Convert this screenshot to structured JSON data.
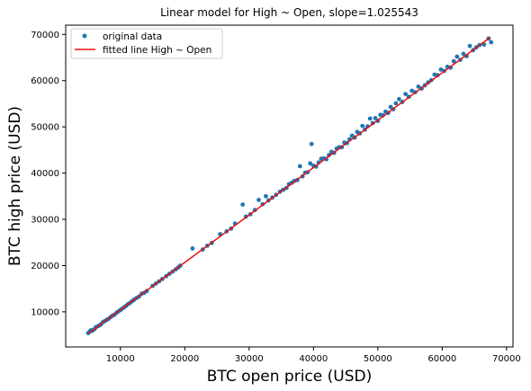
{
  "chart_data": {
    "type": "scatter",
    "title": "Linear model for High ~ Open, slope=1.025543",
    "xlabel": "BTC open price (USD)",
    "ylabel": "BTC high price (USD)",
    "xlim": [
      1500,
      71000
    ],
    "ylim": [
      2400,
      72000
    ],
    "xticks": [
      10000,
      20000,
      30000,
      40000,
      50000,
      60000,
      70000
    ],
    "yticks": [
      10000,
      20000,
      30000,
      40000,
      50000,
      60000,
      70000
    ],
    "grid": false,
    "legend": {
      "placement": "top-left",
      "entries": [
        "original data",
        "fitted line High ~ Open"
      ]
    },
    "series": [
      {
        "name": "original data",
        "kind": "points",
        "color": "#1f77b4",
        "points": [
          [
            5000,
            5400
          ],
          [
            5200,
            5700
          ],
          [
            5400,
            6000
          ],
          [
            5600,
            5900
          ],
          [
            5800,
            6100
          ],
          [
            6000,
            6300
          ],
          [
            6200,
            6700
          ],
          [
            6500,
            6900
          ],
          [
            6800,
            7100
          ],
          [
            7000,
            7300
          ],
          [
            7300,
            7800
          ],
          [
            7600,
            8000
          ],
          [
            7900,
            8300
          ],
          [
            8200,
            8500
          ],
          [
            8500,
            8900
          ],
          [
            8800,
            9200
          ],
          [
            9100,
            9400
          ],
          [
            9400,
            9800
          ],
          [
            9700,
            10100
          ],
          [
            10000,
            10400
          ],
          [
            10300,
            10700
          ],
          [
            10600,
            11000
          ],
          [
            10900,
            11300
          ],
          [
            11200,
            11700
          ],
          [
            11500,
            11900
          ],
          [
            11800,
            12300
          ],
          [
            12100,
            12600
          ],
          [
            12500,
            13000
          ],
          [
            12900,
            13300
          ],
          [
            13300,
            13900
          ],
          [
            13700,
            14100
          ],
          [
            14100,
            14500
          ],
          [
            15000,
            15600
          ],
          [
            15500,
            16100
          ],
          [
            16000,
            16600
          ],
          [
            16500,
            17100
          ],
          [
            17100,
            17700
          ],
          [
            17600,
            18200
          ],
          [
            18100,
            18700
          ],
          [
            18600,
            19200
          ],
          [
            19000,
            19600
          ],
          [
            19300,
            20000
          ],
          [
            21200,
            23700
          ],
          [
            22800,
            23500
          ],
          [
            23500,
            24300
          ],
          [
            24200,
            24900
          ],
          [
            25500,
            26800
          ],
          [
            26500,
            27400
          ],
          [
            27200,
            28000
          ],
          [
            27800,
            29100
          ],
          [
            29000,
            33200
          ],
          [
            29500,
            30600
          ],
          [
            30200,
            31100
          ],
          [
            30900,
            32000
          ],
          [
            31500,
            34200
          ],
          [
            32100,
            33300
          ],
          [
            32600,
            35000
          ],
          [
            33000,
            34100
          ],
          [
            33600,
            34700
          ],
          [
            34200,
            35300
          ],
          [
            34800,
            36000
          ],
          [
            35300,
            36400
          ],
          [
            35800,
            36800
          ],
          [
            36200,
            37600
          ],
          [
            36600,
            37900
          ],
          [
            37000,
            38300
          ],
          [
            37500,
            38500
          ],
          [
            37900,
            41500
          ],
          [
            38300,
            39300
          ],
          [
            38700,
            40100
          ],
          [
            39100,
            40200
          ],
          [
            39500,
            42100
          ],
          [
            39700,
            46300
          ],
          [
            40000,
            41600
          ],
          [
            40400,
            41400
          ],
          [
            40800,
            42300
          ],
          [
            41200,
            43100
          ],
          [
            41600,
            43200
          ],
          [
            42000,
            43000
          ],
          [
            42400,
            43900
          ],
          [
            42800,
            44600
          ],
          [
            43200,
            44400
          ],
          [
            43600,
            45300
          ],
          [
            44000,
            45600
          ],
          [
            44400,
            45600
          ],
          [
            44800,
            46600
          ],
          [
            45200,
            46500
          ],
          [
            45600,
            47300
          ],
          [
            46000,
            48100
          ],
          [
            46400,
            47700
          ],
          [
            46800,
            48900
          ],
          [
            47200,
            48600
          ],
          [
            47600,
            50200
          ],
          [
            48000,
            49400
          ],
          [
            48400,
            50100
          ],
          [
            48800,
            51800
          ],
          [
            49200,
            50800
          ],
          [
            49600,
            51900
          ],
          [
            50000,
            51300
          ],
          [
            50400,
            52600
          ],
          [
            50800,
            52500
          ],
          [
            51200,
            53300
          ],
          [
            51600,
            53000
          ],
          [
            52000,
            54300
          ],
          [
            52400,
            53800
          ],
          [
            52800,
            55100
          ],
          [
            53300,
            56000
          ],
          [
            53800,
            55400
          ],
          [
            54300,
            57100
          ],
          [
            54800,
            56500
          ],
          [
            55300,
            57800
          ],
          [
            55800,
            57500
          ],
          [
            56300,
            58700
          ],
          [
            56800,
            58300
          ],
          [
            57300,
            59000
          ],
          [
            57800,
            59600
          ],
          [
            58300,
            60100
          ],
          [
            58800,
            61300
          ],
          [
            59300,
            61200
          ],
          [
            59800,
            62400
          ],
          [
            60300,
            62100
          ],
          [
            60800,
            63000
          ],
          [
            61300,
            62800
          ],
          [
            61800,
            64200
          ],
          [
            62300,
            65200
          ],
          [
            62800,
            64500
          ],
          [
            63300,
            65800
          ],
          [
            63800,
            65300
          ],
          [
            64300,
            67500
          ],
          [
            64800,
            66600
          ],
          [
            65300,
            67200
          ],
          [
            65800,
            67700
          ],
          [
            66500,
            67800
          ],
          [
            67200,
            69100
          ],
          [
            67600,
            68300
          ]
        ]
      },
      {
        "name": "fitted line High ~ Open",
        "kind": "line",
        "color": "#e8110f",
        "slope": 1.025543,
        "points": [
          [
            5000,
            5300
          ],
          [
            67500,
            69400
          ]
        ]
      }
    ]
  }
}
